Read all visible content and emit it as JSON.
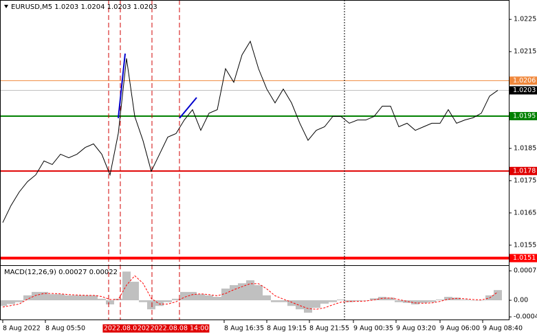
{
  "chart_data": {
    "type": "line",
    "title": "EURUSD,M5  1.0203 1.0204 1.0203 1.0203",
    "x": [
      0,
      6,
      12,
      18,
      24,
      30,
      36,
      42,
      48,
      54,
      60,
      66,
      72,
      78,
      84,
      90,
      96,
      102,
      108,
      114,
      120,
      126,
      132,
      138,
      144,
      150,
      156,
      162,
      168,
      174,
      180,
      186,
      192,
      198,
      204,
      210,
      216,
      222,
      228,
      234,
      240,
      246,
      252,
      258,
      264,
      270,
      276,
      282,
      288,
      294,
      300,
      306,
      312,
      318,
      324,
      330,
      336,
      342,
      348,
      354,
      360
    ],
    "values": [
      1.0162,
      1.01673,
      1.01715,
      1.01747,
      1.01768,
      1.01811,
      1.018,
      1.01832,
      1.01821,
      1.01832,
      1.01853,
      1.01864,
      1.01832,
      1.01768,
      1.01896,
      1.02129,
      1.01949,
      1.01874,
      1.01779,
      1.01832,
      1.01885,
      1.01896,
      1.01938,
      1.0197,
      1.01906,
      1.01959,
      1.0197,
      1.02097,
      1.02055,
      1.0214,
      1.02182,
      1.02097,
      1.02034,
      1.01991,
      1.02034,
      1.01991,
      1.01928,
      1.01875,
      1.01906,
      1.01917,
      1.01949,
      1.01949,
      1.01928,
      1.01938,
      1.01938,
      1.01949,
      1.01981,
      1.01981,
      1.01917,
      1.01928,
      1.01906,
      1.01917,
      1.01928,
      1.01928,
      1.0197,
      1.01928,
      1.01938,
      1.01945,
      1.01959,
      1.02012,
      1.0203
    ],
    "color": "#000000",
    "xlim": [
      0,
      368
    ],
    "xticks": [
      {
        "value": 0,
        "label": "8 Aug 2022"
      },
      {
        "value": 31,
        "label": "8 Aug 05:50"
      },
      {
        "value": 161,
        "label": "8 Aug 16:35"
      },
      {
        "value": 192,
        "label": "8 Aug 19:15"
      },
      {
        "value": 223,
        "label": "8 Aug 21:55"
      },
      {
        "value": 255,
        "label": "9 Aug 00:35"
      },
      {
        "value": 286,
        "label": "9 Aug 03:20"
      },
      {
        "value": 318,
        "label": "9 Aug 06:00"
      },
      {
        "value": 349,
        "label": "9 Aug 08:40"
      }
    ],
    "ylim": [
      1.0149,
      1.0231
    ],
    "yticks": [
      1.0225,
      1.0215,
      1.0185,
      1.0175,
      1.0165,
      1.0155
    ],
    "levels": [
      {
        "value": 1.0206,
        "color": "#f0883c"
      },
      {
        "value": 1.0203,
        "color": "#000000"
      },
      {
        "value": 1.0195,
        "color": "#008000"
      },
      {
        "value": 1.0178,
        "color": "#e00000"
      },
      {
        "value": 1.0151,
        "color": "#ff0000"
      }
    ],
    "vlines": [
      {
        "value": 77,
        "label": "20."
      },
      {
        "value": 85.5,
        "label": "2022.08.0"
      },
      {
        "value": 108.5,
        "label": "2022.08."
      },
      {
        "value": 128.5,
        "label": "2022.08.08 14:00"
      }
    ],
    "macd": {
      "title": "MACD(12,26,9) 0.00027 0.00022",
      "histogram": [
        -0.00015,
        -0.0001,
        -5e-05,
        0.00013,
        0.00022,
        0.00022,
        0.00016,
        0.00016,
        0.00013,
        0.00013,
        0.00013,
        0.00013,
        4e-05,
        -0.00011,
        4e-05,
        0.00076,
        0.00049,
        -5e-05,
        -0.00024,
        -0.00015,
        -5e-05,
        4e-05,
        0.00022,
        0.00022,
        0.00016,
        0.00013,
        9e-05,
        0.00031,
        0.0004,
        0.00045,
        0.00053,
        0.0004,
        0.00013,
        -5e-05,
        -5e-05,
        -0.00015,
        -0.00024,
        -0.00033,
        -0.0002,
        -9e-05,
        -5e-05,
        2e-05,
        -5e-05,
        -2e-05,
        0,
        5e-05,
        9e-05,
        7e-05,
        -5e-05,
        -7e-05,
        -0.00011,
        -7e-05,
        -5e-05,
        2e-05,
        9e-05,
        7e-05,
        2e-05,
        0,
        0,
        0.00013,
        0.00027
      ],
      "signal": [
        -0.00018,
        -0.00014,
        -0.0001,
        3e-05,
        0.00013,
        0.00018,
        0.00018,
        0.00017,
        0.00015,
        0.00014,
        0.00013,
        0.00013,
        0.0001,
        2e-05,
        2e-05,
        0.0004,
        0.00065,
        0.00045,
        5e-05,
        -0.0001,
        -0.0001,
        -4e-05,
        8e-05,
        0.00015,
        0.00017,
        0.00015,
        0.00012,
        0.00018,
        0.00028,
        0.00036,
        0.00044,
        0.00044,
        0.0003,
        0.00012,
        3e-05,
        -5e-05,
        -0.00014,
        -0.00022,
        -0.00024,
        -0.0002,
        -0.00012,
        -5e-05,
        -3e-05,
        -3e-05,
        -2e-05,
        1e-05,
        5e-05,
        6e-05,
        2e-05,
        -3e-05,
        -7e-05,
        -8e-05,
        -7e-05,
        -3e-05,
        3e-05,
        5e-05,
        4e-05,
        2e-05,
        1e-05,
        6e-05,
        0.00022
      ],
      "hist_color": "#c0c0c0",
      "signal_color": "#ff0000",
      "ylim": [
        -0.00051,
        0.00091
      ],
      "yticks": [
        0.00078,
        {
          "value": 0,
          "label": "0.00"
        },
        -0.00044
      ]
    }
  }
}
